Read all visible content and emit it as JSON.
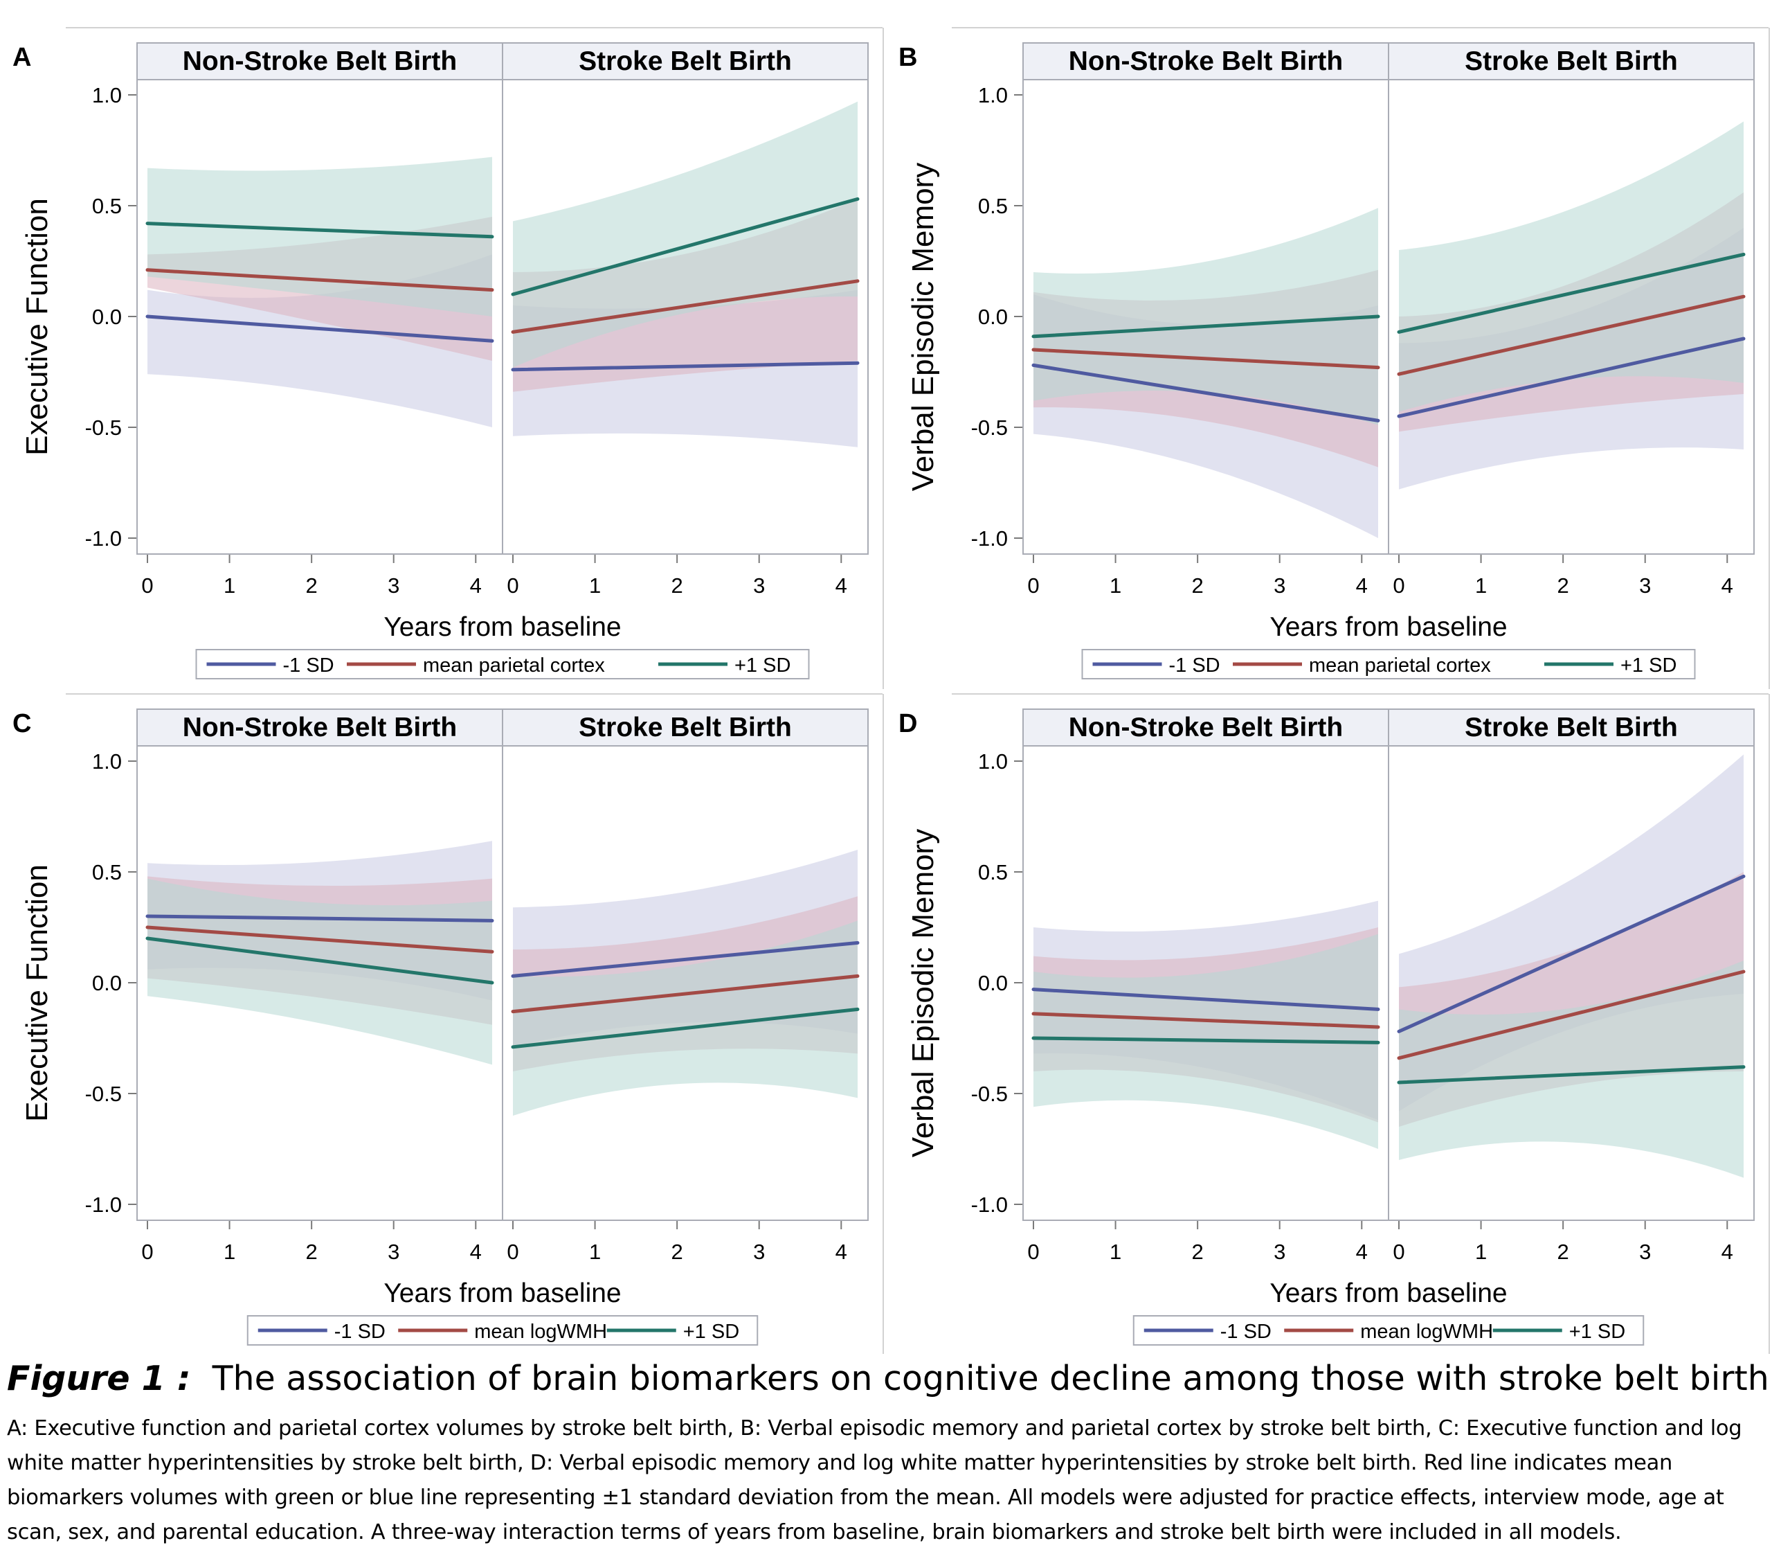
{
  "chart_data": [
    {
      "type": "line",
      "panel_label": "A",
      "ylabel": "Executive Function",
      "xlabel": "Years from baseline",
      "ylim": [
        -1.0,
        1.0
      ],
      "yticks": [
        "1.0",
        "0.5",
        "0.0",
        "-0.5",
        "-1.0"
      ],
      "xticks": [
        "0",
        "1",
        "2",
        "3",
        "4"
      ],
      "x_range": [
        0,
        4.2
      ],
      "colors": {
        "minus": "#4f5aa0",
        "mean": "#a34a45",
        "plus": "#23766a"
      },
      "legend": [
        "-1 SD",
        "mean parietal cortex",
        "+1 SD"
      ],
      "facets": [
        {
          "title": "Non-Stroke Belt Birth",
          "series": [
            {
              "key": "minus",
              "line": [
                0.0,
                -0.11
              ],
              "upper": [
                0.12,
                0.0,
                0.28
              ],
              "lower": [
                -0.26,
                -0.3,
                -0.5
              ]
            },
            {
              "key": "mean",
              "line": [
                0.21,
                0.12
              ],
              "upper": [
                0.28,
                0.3,
                0.45
              ],
              "lower": [
                0.13,
                -0.02,
                -0.2
              ]
            },
            {
              "key": "plus",
              "line": [
                0.42,
                0.36
              ],
              "upper": [
                0.67,
                0.63,
                0.72
              ],
              "lower": [
                0.18,
                0.1,
                0.0
              ]
            }
          ]
        },
        {
          "title": "Stroke Belt Birth",
          "series": [
            {
              "key": "minus",
              "line": [
                -0.24,
                -0.21
              ],
              "upper": [
                0.05,
                0.0,
                0.12
              ],
              "lower": [
                -0.54,
                -0.5,
                -0.59
              ]
            },
            {
              "key": "mean",
              "line": [
                -0.07,
                0.16
              ],
              "upper": [
                0.2,
                0.2,
                0.53
              ],
              "lower": [
                -0.34,
                -0.25,
                -0.2
              ]
            },
            {
              "key": "plus",
              "line": [
                0.1,
                0.53
              ],
              "upper": [
                0.43,
                0.6,
                0.97
              ],
              "lower": [
                -0.23,
                0.1,
                0.09
              ]
            }
          ]
        }
      ]
    },
    {
      "type": "line",
      "panel_label": "B",
      "ylabel": "Verbal Episodic Memory",
      "xlabel": "Years from baseline",
      "ylim": [
        -1.0,
        1.0
      ],
      "yticks": [
        "1.0",
        "0.5",
        "0.0",
        "-0.5",
        "-1.0"
      ],
      "xticks": [
        "0",
        "1",
        "2",
        "3",
        "4"
      ],
      "x_range": [
        0,
        4.2
      ],
      "colors": {
        "minus": "#4f5aa0",
        "mean": "#a34a45",
        "plus": "#23766a"
      },
      "legend": [
        "-1 SD",
        "mean parietal cortex",
        "+1 SD"
      ],
      "facets": [
        {
          "title": "Non-Stroke Belt Birth",
          "series": [
            {
              "key": "minus",
              "line": [
                -0.22,
                -0.47
              ],
              "upper": [
                0.1,
                -0.15,
                0.05
              ],
              "lower": [
                -0.53,
                -0.6,
                -1.0
              ]
            },
            {
              "key": "mean",
              "line": [
                -0.15,
                -0.23
              ],
              "upper": [
                0.11,
                0.0,
                0.21
              ],
              "lower": [
                -0.41,
                -0.4,
                -0.68
              ]
            },
            {
              "key": "plus",
              "line": [
                -0.09,
                0.0
              ],
              "upper": [
                0.2,
                0.15,
                0.49
              ],
              "lower": [
                -0.38,
                -0.25,
                -0.49
              ]
            }
          ]
        },
        {
          "title": "Stroke Belt Birth",
          "series": [
            {
              "key": "minus",
              "line": [
                -0.45,
                -0.1
              ],
              "upper": [
                -0.12,
                -0.12,
                0.4
              ],
              "lower": [
                -0.78,
                -0.55,
                -0.6
              ]
            },
            {
              "key": "mean",
              "line": [
                -0.26,
                0.09
              ],
              "upper": [
                0.0,
                0.02,
                0.56
              ],
              "lower": [
                -0.52,
                -0.4,
                -0.35
              ]
            },
            {
              "key": "plus",
              "line": [
                -0.07,
                0.28
              ],
              "upper": [
                0.3,
                0.38,
                0.88
              ],
              "lower": [
                -0.43,
                -0.2,
                -0.3
              ]
            }
          ]
        }
      ]
    },
    {
      "type": "line",
      "panel_label": "C",
      "ylabel": "Executive Function",
      "xlabel": "Years from baseline",
      "ylim": [
        -1.0,
        1.0
      ],
      "yticks": [
        "1.0",
        "0.5",
        "0.0",
        "-0.5",
        "-1.0"
      ],
      "xticks": [
        "0",
        "1",
        "2",
        "3",
        "4"
      ],
      "x_range": [
        0,
        4.2
      ],
      "colors": {
        "minus": "#4f5aa0",
        "mean": "#a34a45",
        "plus": "#23766a"
      },
      "legend": [
        "-1 SD",
        "mean logWMH",
        "+1 SD"
      ],
      "facets": [
        {
          "title": "Non-Stroke Belt Birth",
          "series": [
            {
              "key": "minus",
              "line": [
                0.3,
                0.28
              ],
              "upper": [
                0.54,
                0.5,
                0.64
              ],
              "lower": [
                0.06,
                0.1,
                -0.08
              ]
            },
            {
              "key": "mean",
              "line": [
                0.25,
                0.14
              ],
              "upper": [
                0.48,
                0.4,
                0.47
              ],
              "lower": [
                0.02,
                -0.05,
                -0.19
              ]
            },
            {
              "key": "plus",
              "line": [
                0.2,
                0.0
              ],
              "upper": [
                0.47,
                0.3,
                0.37
              ],
              "lower": [
                -0.06,
                -0.15,
                -0.37
              ]
            }
          ]
        },
        {
          "title": "Stroke Belt Birth",
          "series": [
            {
              "key": "minus",
              "line": [
                0.03,
                0.18
              ],
              "upper": [
                0.34,
                0.35,
                0.6
              ],
              "lower": [
                -0.29,
                -0.1,
                -0.23
              ]
            },
            {
              "key": "mean",
              "line": [
                -0.13,
                0.03
              ],
              "upper": [
                0.15,
                0.15,
                0.39
              ],
              "lower": [
                -0.4,
                -0.25,
                -0.32
              ]
            },
            {
              "key": "plus",
              "line": [
                -0.29,
                -0.12
              ],
              "upper": [
                0.03,
                0.0,
                0.28
              ],
              "lower": [
                -0.6,
                -0.35,
                -0.52
              ]
            }
          ]
        }
      ]
    },
    {
      "type": "line",
      "panel_label": "D",
      "ylabel": "Verbal Episodic Memory",
      "xlabel": "Years from baseline",
      "ylim": [
        -1.0,
        1.0
      ],
      "yticks": [
        "1.0",
        "0.5",
        "0.0",
        "-0.5",
        "-1.0"
      ],
      "xticks": [
        "0",
        "1",
        "2",
        "3",
        "4"
      ],
      "x_range": [
        0,
        4.2
      ],
      "colors": {
        "minus": "#4f5aa0",
        "mean": "#a34a45",
        "plus": "#23766a"
      },
      "legend": [
        "-1 SD",
        "mean logWMH",
        "+1 SD"
      ],
      "facets": [
        {
          "title": "Non-Stroke Belt Birth",
          "series": [
            {
              "key": "minus",
              "line": [
                -0.03,
                -0.12
              ],
              "upper": [
                0.25,
                0.18,
                0.37
              ],
              "lower": [
                -0.32,
                -0.3,
                -0.62
              ]
            },
            {
              "key": "mean",
              "line": [
                -0.14,
                -0.2
              ],
              "upper": [
                0.12,
                0.05,
                0.25
              ],
              "lower": [
                -0.4,
                -0.35,
                -0.63
              ]
            },
            {
              "key": "plus",
              "line": [
                -0.25,
                -0.27
              ],
              "upper": [
                0.05,
                -0.05,
                0.22
              ],
              "lower": [
                -0.56,
                -0.45,
                -0.75
              ]
            }
          ]
        },
        {
          "title": "Stroke Belt Birth",
          "series": [
            {
              "key": "minus",
              "line": [
                -0.22,
                0.48
              ],
              "upper": [
                0.13,
                0.35,
                1.03
              ],
              "lower": [
                -0.58,
                -0.1,
                -0.05
              ]
            },
            {
              "key": "mean",
              "line": [
                -0.34,
                0.05
              ],
              "upper": [
                -0.02,
                0.05,
                0.5
              ],
              "lower": [
                -0.65,
                -0.4,
                -0.4
              ]
            },
            {
              "key": "plus",
              "line": [
                -0.45,
                -0.38
              ],
              "upper": [
                -0.12,
                -0.22,
                0.1
              ],
              "lower": [
                -0.8,
                -0.6,
                -0.88
              ]
            }
          ]
        }
      ]
    }
  ],
  "caption": {
    "label": "Figure 1 :",
    "title": "The association of brain biomarkers on cognitive decline among those with stroke belt birth",
    "text": "A: Executive function and parietal cortex volumes by stroke belt birth, B: Verbal episodic memory and parietal cortex by stroke belt birth, C: Executive function and log white matter hyperintensities by stroke belt birth, D: Verbal episodic memory and log white matter hyperintensities by stroke belt birth. Red line indicates mean biomarkers volumes with green or blue line representing ±1 standard deviation from the mean. All models were adjusted for practice effects, interview mode, age at scan, sex, and parental education. A three-way interaction terms of years from baseline, brain biomarkers and stroke belt birth were included in all models."
  }
}
